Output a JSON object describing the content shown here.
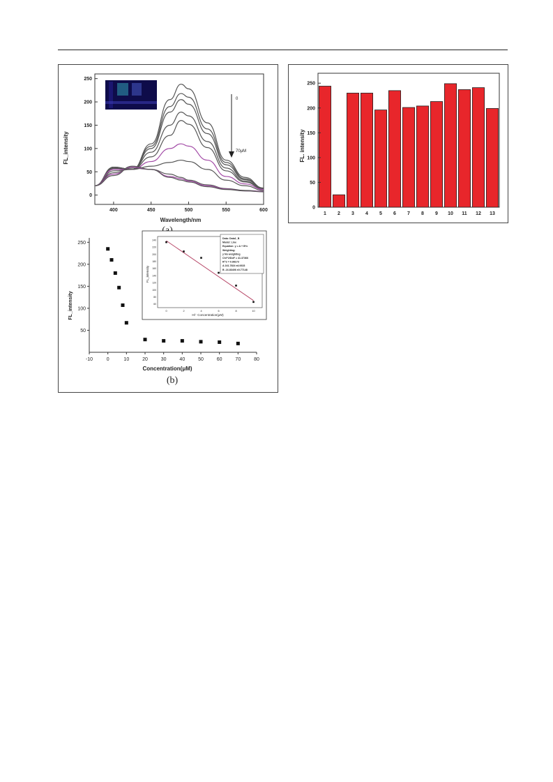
{
  "colors": {
    "bar_fill": "#e8262b",
    "line_dark": "#555555",
    "line_purple": "#a24aa6",
    "fit_line": "#b84a6a"
  },
  "figure_left": {
    "panel_a": {
      "caption": "(a)",
      "inset_photo": "cuvette-photo",
      "arrow_top_label": "0",
      "arrow_bottom_label": "70μM",
      "chart_data": {
        "type": "line",
        "xlabel": "Wavelength/nm",
        "ylabel": "FL_intensity",
        "xlim": [
          375,
          600
        ],
        "ylim": [
          -20,
          260
        ],
        "xticks": [
          400,
          450,
          500,
          550,
          600
        ],
        "yticks": [
          0,
          50,
          100,
          150,
          200,
          250
        ],
        "grid": false,
        "x": [
          375,
          400,
          425,
          450,
          475,
          490,
          500,
          525,
          550,
          575,
          600
        ],
        "series": [
          {
            "values": [
              20,
              60,
              55,
              110,
              205,
              238,
              228,
              155,
              75,
              38,
              15
            ]
          },
          {
            "values": [
              20,
              60,
              55,
              105,
              190,
              218,
              210,
              142,
              70,
              35,
              15
            ]
          },
          {
            "values": [
              20,
              60,
              55,
              100,
              178,
              205,
              195,
              132,
              65,
              33,
              15
            ]
          },
          {
            "values": [
              20,
              58,
              55,
              92,
              150,
              178,
              170,
              115,
              58,
              30,
              14
            ]
          },
          {
            "values": [
              20,
              57,
              55,
              82,
              128,
              160,
              152,
              102,
              52,
              28,
              13
            ]
          },
          {
            "values": [
              20,
              55,
              55,
              72,
              100,
              110,
              105,
              75,
              40,
              24,
              12
            ]
          },
          {
            "values": [
              20,
              52,
              55,
              62,
              70,
              75,
              72,
              55,
              32,
              20,
              10
            ]
          },
          {
            "values": [
              20,
              48,
              58,
              55,
              45,
              38,
              32,
              22,
              14,
              10,
              8
            ]
          },
          {
            "values": [
              20,
              45,
              60,
              55,
              40,
              35,
              30,
              20,
              13,
              9,
              8
            ]
          },
          {
            "values": [
              20,
              42,
              62,
              55,
              38,
              32,
              28,
              18,
              12,
              9,
              7
            ]
          }
        ]
      }
    },
    "panel_b": {
      "caption": "(b)",
      "chart_data": {
        "type": "scatter",
        "xlabel": "Concentration(μM)",
        "ylabel": "FL_intensity",
        "xlim": [
          -10,
          80
        ],
        "ylim": [
          0,
          260
        ],
        "xticks": [
          -10,
          0,
          10,
          20,
          30,
          40,
          50,
          60,
          70,
          80
        ],
        "yticks": [
          50,
          100,
          150,
          200,
          250
        ],
        "grid": false,
        "x": [
          0,
          2,
          4,
          6,
          8,
          10,
          20,
          30,
          40,
          50,
          60,
          70
        ],
        "y": [
          235,
          210,
          180,
          147,
          107,
          67,
          29,
          26,
          26,
          24,
          23,
          20
        ]
      },
      "inset": {
        "chart_data": {
          "type": "scatter",
          "xlabel": "Hl⁻ Concentration(μM)",
          "ylabel": "FL_intensity",
          "xlim": [
            -1,
            11
          ],
          "ylim": [
            50,
            250
          ],
          "xticks": [
            0,
            2,
            4,
            6,
            8,
            10
          ],
          "yticks": [
            60,
            80,
            100,
            120,
            140,
            160,
            180,
            200,
            220,
            240
          ],
          "x": [
            0,
            2,
            4,
            6,
            8,
            10
          ],
          "y": [
            234,
            208,
            190,
            148,
            112,
            66
          ],
          "fit": {
            "x": [
              0,
              10
            ],
            "y": [
              238,
              70
            ]
          }
        },
        "legend_box": [
          "Data: Data1_B",
          "Model: Line",
          "Equation: y = A + B*x",
          "Weighting:",
          "y      No weighting",
          "Chi^2/DoF      = 41.37366",
          "R^2      = 0.98173",
          "A      241.7824      ±4.0633",
          "B      -16.83406      ±0.77148"
        ]
      }
    }
  },
  "figure_right": {
    "chart_data": {
      "type": "bar",
      "categories": [
        "1",
        "2",
        "3",
        "4",
        "5",
        "6",
        "7",
        "8",
        "9",
        "10",
        "11",
        "12",
        "13"
      ],
      "values": [
        244,
        25,
        230,
        230,
        196,
        235,
        201,
        204,
        213,
        249,
        237,
        241,
        199
      ],
      "xlabel": "",
      "ylabel": "FL. intensity",
      "ylim": [
        0,
        270
      ],
      "yticks": [
        0,
        50,
        100,
        150,
        200,
        250
      ],
      "grid": false
    }
  }
}
